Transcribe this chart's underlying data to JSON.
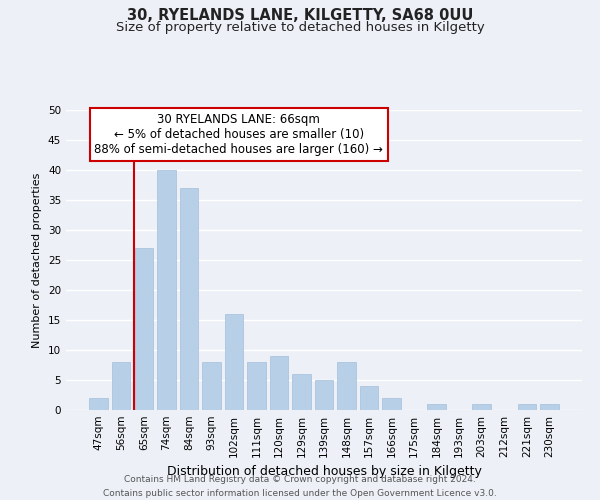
{
  "title": "30, RYELANDS LANE, KILGETTY, SA68 0UU",
  "subtitle": "Size of property relative to detached houses in Kilgetty",
  "xlabel": "Distribution of detached houses by size in Kilgetty",
  "ylabel": "Number of detached properties",
  "bar_labels": [
    "47sqm",
    "56sqm",
    "65sqm",
    "74sqm",
    "84sqm",
    "93sqm",
    "102sqm",
    "111sqm",
    "120sqm",
    "129sqm",
    "139sqm",
    "148sqm",
    "157sqm",
    "166sqm",
    "175sqm",
    "184sqm",
    "193sqm",
    "203sqm",
    "212sqm",
    "221sqm",
    "230sqm"
  ],
  "bar_values": [
    2,
    8,
    27,
    40,
    37,
    8,
    16,
    8,
    9,
    6,
    5,
    8,
    4,
    2,
    0,
    1,
    0,
    1,
    0,
    1,
    1
  ],
  "bar_color": "#b8cfe8",
  "vline_color": "#cc0000",
  "vline_bar_index": 2,
  "ylim": [
    0,
    50
  ],
  "yticks": [
    0,
    5,
    10,
    15,
    20,
    25,
    30,
    35,
    40,
    45,
    50
  ],
  "annotation_title": "30 RYELANDS LANE: 66sqm",
  "annotation_line1": "← 5% of detached houses are smaller (10)",
  "annotation_line2": "88% of semi-detached houses are larger (160) →",
  "annotation_box_facecolor": "#ffffff",
  "annotation_box_edgecolor": "#cc0000",
  "footer_line1": "Contains HM Land Registry data © Crown copyright and database right 2024.",
  "footer_line2": "Contains public sector information licensed under the Open Government Licence v3.0.",
  "background_color": "#edf1f7",
  "plot_background": "#edf1f7",
  "grid_color": "#ffffff",
  "title_fontsize": 10.5,
  "subtitle_fontsize": 9.5,
  "ylabel_fontsize": 8,
  "xlabel_fontsize": 9,
  "tick_fontsize": 7.5,
  "annotation_fontsize": 8.5,
  "footer_fontsize": 6.5
}
